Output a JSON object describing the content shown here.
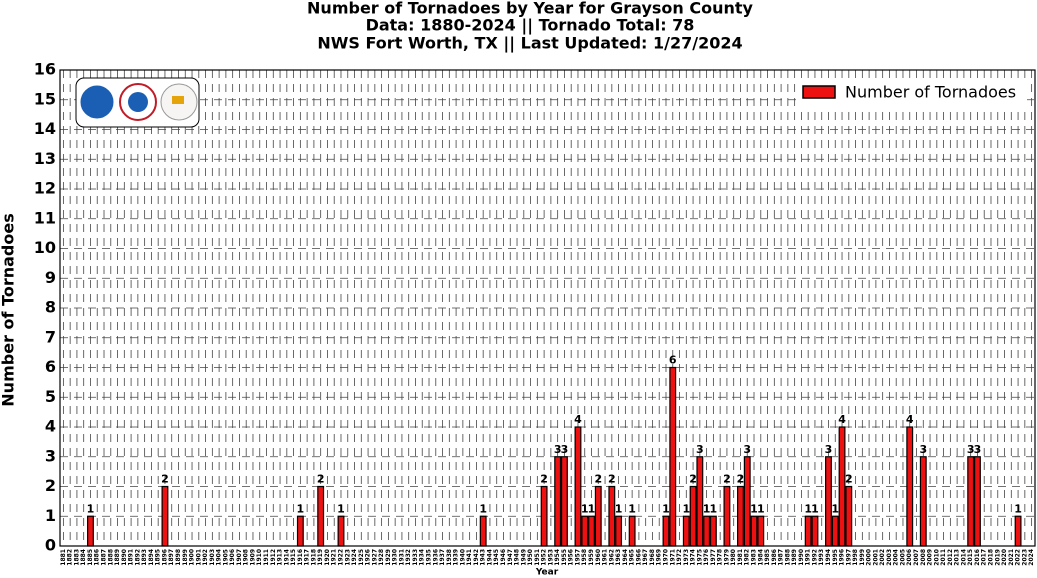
{
  "chart_data": {
    "type": "bar",
    "title": [
      "Number of Tornadoes by Year for Grayson County",
      "Data: 1880-2024 || Tornado Total: 78",
      "NWS Fort Worth, TX || Last Updated: 1/27/2024"
    ],
    "x_label": "Year",
    "y_label": "Number of Tornadoes",
    "categories": [
      "1881",
      "1882",
      "1883",
      "1884",
      "1885",
      "1886",
      "1887",
      "1888",
      "1889",
      "1890",
      "1891",
      "1892",
      "1893",
      "1894",
      "1895",
      "1896",
      "1897",
      "1898",
      "1899",
      "1900",
      "1901",
      "1902",
      "1903",
      "1904",
      "1905",
      "1906",
      "1907",
      "1908",
      "1909",
      "1910",
      "1911",
      "1912",
      "1913",
      "1914",
      "1915",
      "1916",
      "1917",
      "1918",
      "1919",
      "1920",
      "1921",
      "1922",
      "1923",
      "1924",
      "1925",
      "1926",
      "1927",
      "1928",
      "1929",
      "1930",
      "1931",
      "1932",
      "1933",
      "1934",
      "1935",
      "1936",
      "1937",
      "1938",
      "1939",
      "1940",
      "1941",
      "1942",
      "1943",
      "1944",
      "1945",
      "1946",
      "1947",
      "1948",
      "1949",
      "1950",
      "1951",
      "1952",
      "1953",
      "1954",
      "1955",
      "1956",
      "1957",
      "1958",
      "1959",
      "1960",
      "1961",
      "1962",
      "1963",
      "1964",
      "1965",
      "1966",
      "1967",
      "1968",
      "1969",
      "1970",
      "1971",
      "1972",
      "1973",
      "1974",
      "1975",
      "1976",
      "1977",
      "1978",
      "1979",
      "1980",
      "1981",
      "1982",
      "1983",
      "1984",
      "1985",
      "1986",
      "1987",
      "1988",
      "1989",
      "1990",
      "1991",
      "1992",
      "1993",
      "1994",
      "1995",
      "1996",
      "1997",
      "1998",
      "1999",
      "2000",
      "2001",
      "2002",
      "2003",
      "2004",
      "2005",
      "2006",
      "2007",
      "2008",
      "2009",
      "2010",
      "2011",
      "2012",
      "2013",
      "2014",
      "2015",
      "2016",
      "2017",
      "2018",
      "2019",
      "2020",
      "2021",
      "2022",
      "2023",
      "2024"
    ],
    "series": [
      {
        "name": "Number of Tornadoes",
        "color": "#ee1111",
        "values": [
          0,
          0,
          0,
          0,
          1,
          0,
          0,
          0,
          0,
          0,
          0,
          0,
          0,
          0,
          0,
          2,
          0,
          0,
          0,
          0,
          0,
          0,
          0,
          0,
          0,
          0,
          0,
          0,
          0,
          0,
          0,
          0,
          0,
          0,
          0,
          1,
          0,
          0,
          2,
          0,
          0,
          1,
          0,
          0,
          0,
          0,
          0,
          0,
          0,
          0,
          0,
          0,
          0,
          0,
          0,
          0,
          0,
          0,
          0,
          0,
          0,
          0,
          1,
          0,
          0,
          0,
          0,
          0,
          0,
          0,
          0,
          2,
          0,
          3,
          3,
          0,
          4,
          1,
          1,
          2,
          0,
          2,
          1,
          0,
          1,
          0,
          0,
          0,
          0,
          1,
          6,
          0,
          1,
          2,
          3,
          1,
          1,
          0,
          2,
          0,
          2,
          3,
          1,
          1,
          0,
          0,
          0,
          0,
          0,
          0,
          1,
          1,
          0,
          3,
          1,
          4,
          2,
          0,
          0,
          0,
          0,
          0,
          0,
          0,
          0,
          4,
          0,
          3,
          0,
          0,
          0,
          0,
          0,
          0,
          3,
          3,
          0,
          0,
          0,
          0,
          0,
          1,
          0,
          0
        ]
      }
    ],
    "ylim": [
      0,
      16
    ],
    "yticks": [
      0,
      1,
      2,
      3,
      4,
      5,
      6,
      7,
      8,
      9,
      10,
      11,
      12,
      13,
      14,
      15,
      16
    ],
    "grid": true,
    "legend": "upper right"
  }
}
